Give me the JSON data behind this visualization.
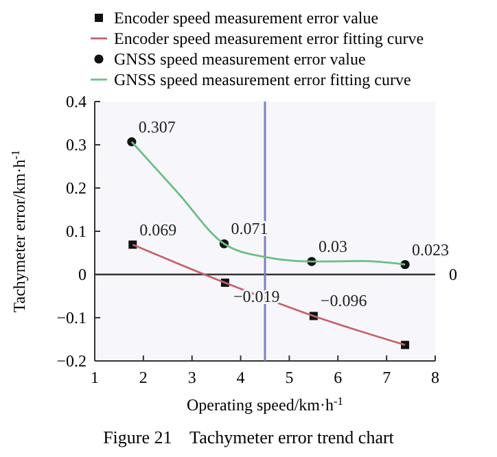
{
  "chart_data": {
    "type": "scatter",
    "title": "Figure 21    Tachymeter error trend chart",
    "xlabel": "Operating speed/km·h$^{-1}$",
    "ylabel": "Tachymeter error/km·h$^{-1}$",
    "xlim": [
      1,
      8
    ],
    "xticks": [
      1,
      2,
      3,
      4,
      5,
      6,
      7,
      8
    ],
    "ylim": [
      -0.2,
      0.4
    ],
    "yticks": [
      {
        "value": -0.2,
        "label": "−0.2"
      },
      {
        "value": -0.1,
        "label": "−0.1"
      },
      0,
      0.1,
      0.2,
      0.3,
      0.4
    ],
    "legend": "top",
    "grid": false,
    "ref_lines": [
      {
        "axis": "y",
        "value": 0,
        "label": "0",
        "color": "#333333"
      },
      {
        "axis": "x",
        "value": 4.5,
        "color": "#7b80c4"
      }
    ],
    "series": [
      {
        "name": "Encoder speed measurement error value",
        "marker": "square",
        "color": "#111111",
        "x": [
          1.78,
          3.68,
          5.5,
          7.38
        ],
        "values": [
          0.069,
          -0.019,
          -0.096,
          -0.163
        ],
        "value_labels": [
          "0.069",
          "−0.019",
          "−0.096",
          null
        ]
      },
      {
        "name": "Encoder speed measurement error fitting curve",
        "type": "line",
        "marker": "none",
        "color": "#c8606a",
        "x": [
          1.78,
          3.68,
          5.5,
          7.38
        ],
        "values": [
          0.069,
          -0.019,
          -0.096,
          -0.163
        ]
      },
      {
        "name": "GNSS speed measurement error value",
        "marker": "circle",
        "color": "#111111",
        "x": [
          1.76,
          3.66,
          5.46,
          7.38
        ],
        "values": [
          0.307,
          0.071,
          0.03,
          0.023
        ],
        "value_labels": [
          "0.307",
          "0.071",
          "0.03",
          "0.023"
        ]
      },
      {
        "name": "GNSS speed measurement error fitting curve",
        "type": "line",
        "marker": "none",
        "color": "#6cbf84",
        "x": [
          1.76,
          2.7,
          3.66,
          4.47,
          5.46,
          6.5,
          7.38
        ],
        "values": [
          0.307,
          0.19,
          0.071,
          0.041,
          0.03,
          0.031,
          0.023
        ]
      }
    ]
  }
}
